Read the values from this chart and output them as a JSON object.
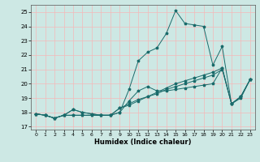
{
  "title": "",
  "xlabel": "Humidex (Indice chaleur)",
  "ylabel": "",
  "background_color": "#cde8e4",
  "grid_color": "#f5b8b8",
  "line_color": "#1a6b6b",
  "x_ticks": [
    0,
    1,
    2,
    3,
    4,
    5,
    6,
    7,
    8,
    9,
    10,
    11,
    12,
    13,
    14,
    15,
    16,
    17,
    18,
    19,
    20,
    21,
    22,
    23
  ],
  "y_ticks": [
    17,
    18,
    19,
    20,
    21,
    22,
    23,
    24,
    25
  ],
  "ylim": [
    16.8,
    25.5
  ],
  "xlim": [
    -0.5,
    23.5
  ],
  "series": [
    {
      "x": [
        0,
        1,
        2,
        3,
        4,
        5,
        6,
        7,
        8,
        9,
        10,
        11,
        12,
        13,
        14,
        15,
        16,
        17,
        18,
        19,
        20,
        21,
        22,
        23
      ],
      "y": [
        17.9,
        17.8,
        17.6,
        17.8,
        17.8,
        17.8,
        17.8,
        17.8,
        17.8,
        18.0,
        19.6,
        21.6,
        22.2,
        22.5,
        23.5,
        25.1,
        24.2,
        24.1,
        24.0,
        21.3,
        22.6,
        18.6,
        19.1,
        20.3
      ]
    },
    {
      "x": [
        0,
        1,
        2,
        3,
        4,
        5,
        6,
        7,
        8,
        9,
        10,
        11,
        12,
        13,
        14,
        15,
        16,
        17,
        18,
        19,
        20,
        21,
        22,
        23
      ],
      "y": [
        17.9,
        17.8,
        17.6,
        17.8,
        17.8,
        17.8,
        17.8,
        17.8,
        17.8,
        18.0,
        18.8,
        19.5,
        19.8,
        19.5,
        19.5,
        19.6,
        19.7,
        19.8,
        19.9,
        20.0,
        21.1,
        18.6,
        19.1,
        20.3
      ]
    },
    {
      "x": [
        0,
        1,
        2,
        3,
        4,
        5,
        6,
        7,
        8,
        9,
        10,
        11,
        12,
        13,
        14,
        15,
        16,
        17,
        18,
        19,
        20,
        21,
        22,
        23
      ],
      "y": [
        17.9,
        17.8,
        17.6,
        17.8,
        18.2,
        18.0,
        17.9,
        17.8,
        17.8,
        18.3,
        18.5,
        18.8,
        19.1,
        19.4,
        19.7,
        20.0,
        20.2,
        20.4,
        20.6,
        20.8,
        21.1,
        18.6,
        19.1,
        20.3
      ]
    },
    {
      "x": [
        0,
        1,
        2,
        3,
        4,
        5,
        6,
        7,
        8,
        9,
        10,
        11,
        12,
        13,
        14,
        15,
        16,
        17,
        18,
        19,
        20,
        21,
        22,
        23
      ],
      "y": [
        17.9,
        17.8,
        17.6,
        17.8,
        18.2,
        18.0,
        17.9,
        17.8,
        17.8,
        18.3,
        18.6,
        18.9,
        19.1,
        19.3,
        19.6,
        19.8,
        20.0,
        20.2,
        20.4,
        20.6,
        21.0,
        18.6,
        19.0,
        20.3
      ]
    }
  ]
}
